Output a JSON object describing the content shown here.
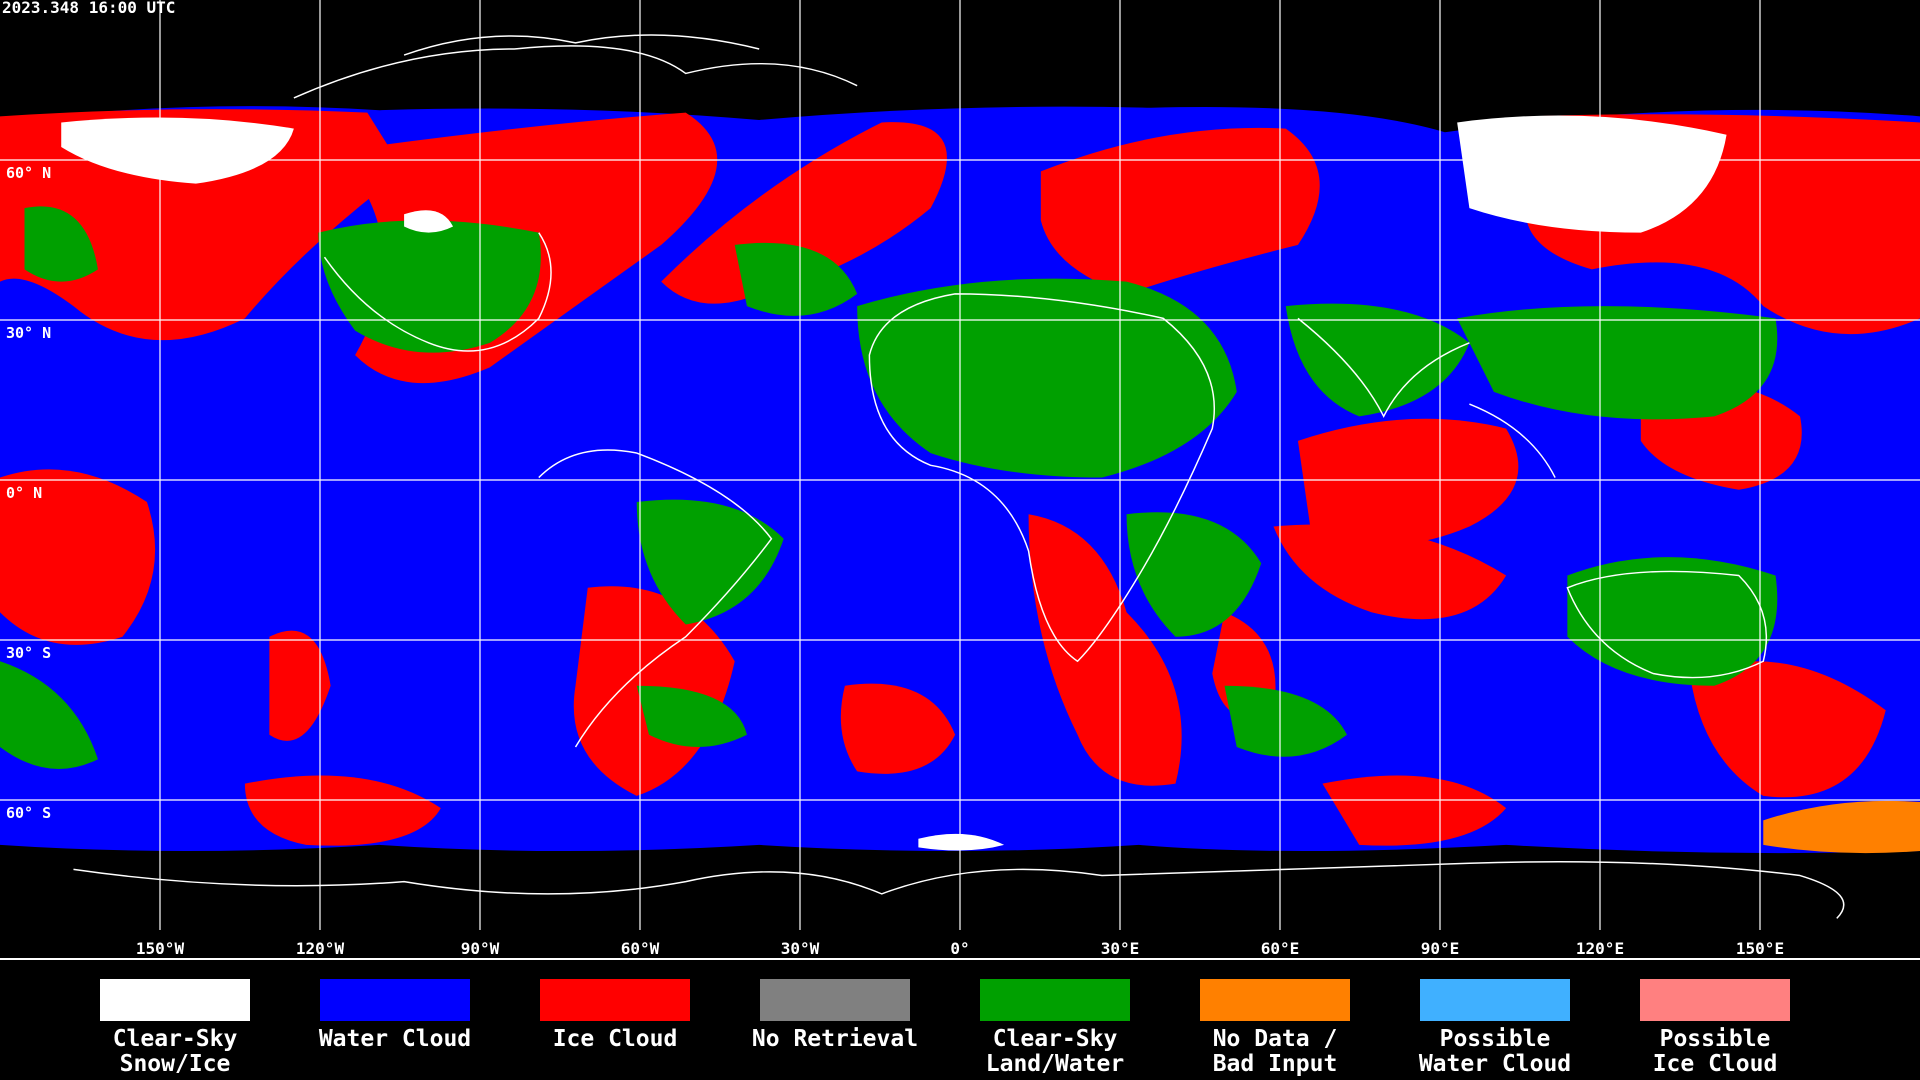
{
  "header": {
    "timestamp": "2023.348 16:00 UTC"
  },
  "map": {
    "latitude_lines": [
      {
        "value": 60,
        "label": "60° N"
      },
      {
        "value": 30,
        "label": "30° N"
      },
      {
        "value": 0,
        "label": "0° N"
      },
      {
        "value": -30,
        "label": "30° S"
      },
      {
        "value": -60,
        "label": "60° S"
      }
    ],
    "longitude_lines": [
      {
        "value": -150,
        "label": "150°W"
      },
      {
        "value": -120,
        "label": "120°W"
      },
      {
        "value": -90,
        "label": "90°W"
      },
      {
        "value": -60,
        "label": "60°W"
      },
      {
        "value": -30,
        "label": "30°W"
      },
      {
        "value": 0,
        "label": "0°"
      },
      {
        "value": 30,
        "label": "30°E"
      },
      {
        "value": 60,
        "label": "60°E"
      },
      {
        "value": 90,
        "label": "90°E"
      },
      {
        "value": 120,
        "label": "120°E"
      },
      {
        "value": 150,
        "label": "150°E"
      }
    ]
  },
  "legend": {
    "items": [
      {
        "color": "#ffffff",
        "label": [
          "Clear-Sky",
          "Snow/Ice"
        ]
      },
      {
        "color": "#0000ff",
        "label": [
          "Water Cloud"
        ]
      },
      {
        "color": "#ff0000",
        "label": [
          "Ice Cloud"
        ]
      },
      {
        "color": "#808080",
        "label": [
          "No Retrieval"
        ]
      },
      {
        "color": "#00a000",
        "label": [
          "Clear-Sky",
          "Land/Water"
        ]
      },
      {
        "color": "#ff8000",
        "label": [
          "No Data /",
          "Bad Input"
        ]
      },
      {
        "color": "#40b0ff",
        "label": [
          "Possible",
          "Water Cloud"
        ]
      },
      {
        "color": "#ff8080",
        "label": [
          "Possible",
          "Ice Cloud"
        ]
      }
    ]
  }
}
